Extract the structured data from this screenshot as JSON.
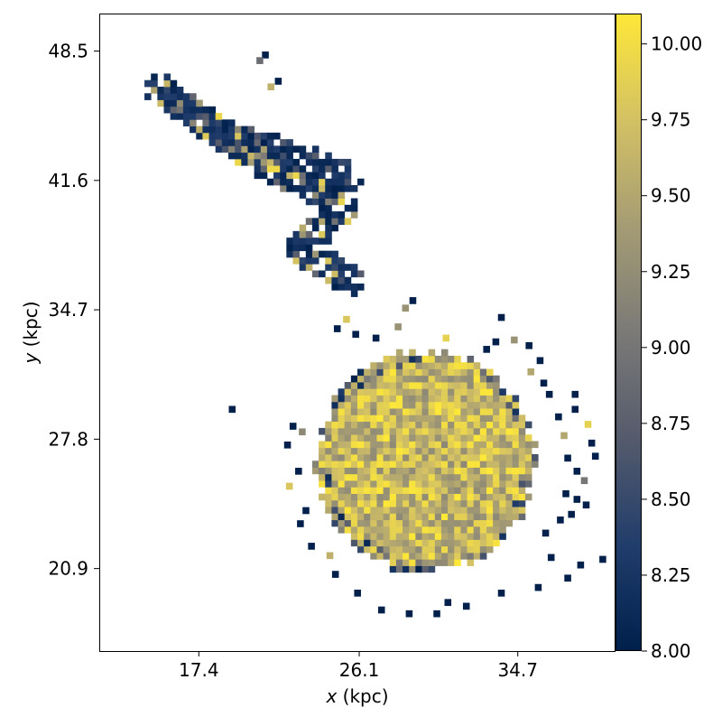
{
  "chart_data": {
    "type": "heatmap",
    "title": "",
    "xlabel": {
      "var": "x",
      "unit": " (kpc)"
    },
    "ylabel": {
      "var": "y",
      "unit": " (kpc)"
    },
    "xlim": [
      12.0,
      40.0
    ],
    "ylim": [
      16.5,
      50.5
    ],
    "x_ticks": [
      17.4,
      26.1,
      34.7
    ],
    "x_tick_labels": [
      "17.4",
      "26.1",
      "34.7"
    ],
    "y_ticks": [
      20.9,
      27.8,
      34.7,
      41.6,
      48.5
    ],
    "y_tick_labels": [
      "20.9",
      "27.8",
      "34.7",
      "41.6",
      "48.5"
    ],
    "grid": false,
    "legend": "none",
    "colormap": "cividis",
    "colormap_stops": [
      "#00204c",
      "#213d6b",
      "#555b6c",
      "#7b7a77",
      "#a59c74",
      "#d3c164",
      "#fee838"
    ],
    "colorbar": {
      "range": [
        8.0,
        10.1
      ],
      "ticks": [
        8.0,
        8.25,
        8.5,
        8.75,
        9.0,
        9.25,
        9.5,
        9.75,
        10.0
      ],
      "tick_labels": [
        "8.00",
        "8.25",
        "8.50",
        "8.75",
        "9.00",
        "9.25",
        "9.50",
        "9.75",
        "10.00"
      ],
      "placement": "right"
    },
    "pixel_size_kpc": 0.35,
    "structures": [
      {
        "kind": "disk",
        "center": [
          29.7,
          26.6
        ],
        "radius": 6.0,
        "value_range": [
          9.2,
          10.1
        ],
        "edge_value_range": [
          8.0,
          9.7
        ]
      },
      {
        "kind": "tidal_arc",
        "path": [
          [
            15.3,
            46.5
          ],
          [
            18.0,
            44.5
          ],
          [
            21.0,
            42.5
          ],
          [
            24.0,
            41.0
          ],
          [
            25.2,
            40.0
          ],
          [
            22.8,
            38.0
          ],
          [
            25.5,
            36.3
          ]
        ],
        "width": 1.6,
        "value_range": [
          8.0,
          10.0
        ]
      },
      {
        "kind": "tidal_arc",
        "path": [
          [
            19.5,
            43.8
          ],
          [
            22.5,
            43.0
          ],
          [
            25.5,
            41.8
          ]
        ],
        "width": 1.5,
        "value_range": [
          8.0,
          8.8
        ]
      }
    ],
    "isolated_pixels": [
      [
        21.0,
        48.3,
        8.0
      ],
      [
        20.7,
        48.0,
        8.9
      ],
      [
        21.7,
        46.9,
        8.0
      ],
      [
        21.3,
        46.6,
        9.6
      ],
      [
        28.6,
        34.8,
        9.3
      ],
      [
        29.0,
        35.2,
        8.0
      ],
      [
        28.2,
        33.8,
        9.3
      ],
      [
        33.8,
        34.3,
        8.0
      ],
      [
        25.4,
        34.2,
        9.8
      ],
      [
        24.9,
        33.7,
        8.0
      ],
      [
        25.9,
        33.4,
        8.0
      ],
      [
        27.0,
        33.2,
        8.0
      ],
      [
        30.8,
        33.2,
        9.9
      ],
      [
        33.5,
        33.0,
        8.0
      ],
      [
        33.0,
        32.6,
        8.0
      ],
      [
        34.5,
        33.1,
        9.3
      ],
      [
        35.3,
        32.8,
        8.0
      ],
      [
        35.9,
        32.0,
        8.0
      ],
      [
        35.4,
        31.4,
        9.5
      ],
      [
        36.1,
        30.8,
        8.0
      ],
      [
        36.4,
        30.2,
        8.0
      ],
      [
        37.8,
        30.2,
        8.0
      ],
      [
        37.8,
        29.4,
        8.0
      ],
      [
        36.9,
        29.0,
        8.0
      ],
      [
        38.5,
        28.6,
        9.9
      ],
      [
        37.2,
        28.0,
        9.5
      ],
      [
        38.7,
        27.6,
        8.0
      ],
      [
        38.9,
        26.9,
        8.0
      ],
      [
        37.4,
        26.8,
        8.0
      ],
      [
        37.9,
        26.1,
        8.0
      ],
      [
        38.3,
        25.6,
        9.0
      ],
      [
        37.3,
        24.9,
        8.0
      ],
      [
        37.9,
        24.6,
        8.0
      ],
      [
        38.4,
        24.3,
        8.0
      ],
      [
        37.6,
        23.8,
        8.0
      ],
      [
        37.0,
        23.5,
        8.0
      ],
      [
        36.2,
        22.8,
        8.0
      ],
      [
        38.1,
        21.1,
        8.0
      ],
      [
        39.3,
        21.4,
        8.0
      ],
      [
        37.4,
        20.4,
        8.0
      ],
      [
        36.5,
        21.5,
        8.0
      ],
      [
        35.8,
        19.9,
        8.0
      ],
      [
        33.8,
        19.6,
        8.0
      ],
      [
        31.9,
        18.9,
        8.0
      ],
      [
        30.9,
        19.1,
        8.0
      ],
      [
        30.3,
        18.5,
        8.0
      ],
      [
        28.8,
        18.5,
        8.0
      ],
      [
        27.3,
        18.7,
        8.0
      ],
      [
        26.0,
        19.6,
        8.0
      ],
      [
        24.8,
        20.6,
        8.0
      ],
      [
        24.5,
        21.6,
        9.6
      ],
      [
        23.5,
        22.1,
        8.0
      ],
      [
        22.9,
        23.3,
        8.0
      ],
      [
        23.2,
        24.0,
        8.0
      ],
      [
        22.3,
        25.3,
        9.8
      ],
      [
        22.8,
        26.1,
        8.0
      ],
      [
        22.2,
        27.5,
        8.0
      ],
      [
        23.0,
        28.2,
        9.2
      ],
      [
        22.5,
        28.5,
        8.0
      ],
      [
        19.2,
        29.4,
        8.0
      ]
    ]
  }
}
